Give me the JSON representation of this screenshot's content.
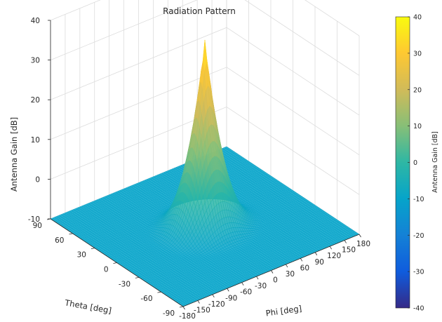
{
  "chart_data": {
    "type": "surface",
    "title": "Radiation Pattern",
    "xlabel": "Phi [deg]",
    "ylabel": "Theta [deg]",
    "zlabel": "Antenna Gain [dB]",
    "colorbar_label": "Antenna Gain [dB]",
    "xlim": [
      -180,
      180
    ],
    "ylim": [
      -90,
      90
    ],
    "zlim": [
      -10,
      40
    ],
    "clim": [
      -40,
      40
    ],
    "x_ticks": [
      -180,
      -150,
      -120,
      -90,
      -60,
      -30,
      0,
      30,
      60,
      90,
      120,
      150,
      180
    ],
    "x_tick_labels": [
      "-180",
      "-150",
      "-120",
      "-90",
      "-60",
      "-30",
      "0",
      "30",
      "60",
      "90",
      "120",
      "150",
      "180"
    ],
    "y_ticks": [
      90,
      60,
      30,
      0,
      -30,
      -60,
      -90
    ],
    "y_tick_labels": [
      "90",
      "60",
      "30",
      "0",
      "-30",
      "-60",
      "-90"
    ],
    "z_ticks": [
      -10,
      0,
      10,
      20,
      30,
      40
    ],
    "z_tick_labels": [
      "-10",
      "0",
      "10",
      "20",
      "30",
      "40"
    ],
    "colorbar_ticks": [
      40,
      30,
      20,
      10,
      0,
      -10,
      -20,
      -30,
      -40
    ],
    "colorbar_tick_labels": [
      "40",
      "30",
      "20",
      "10",
      "0",
      "-10",
      "-20",
      "-30",
      "-40"
    ],
    "surface": {
      "baseline_gain": -10,
      "peak": {
        "phi": 0,
        "theta": 0,
        "gain": 37
      },
      "main_lobe_extent": {
        "phi_halfwidth": 110,
        "theta_halfwidth": 50
      }
    },
    "colormap": "parula",
    "grid": true,
    "colorbar_location": "right"
  }
}
